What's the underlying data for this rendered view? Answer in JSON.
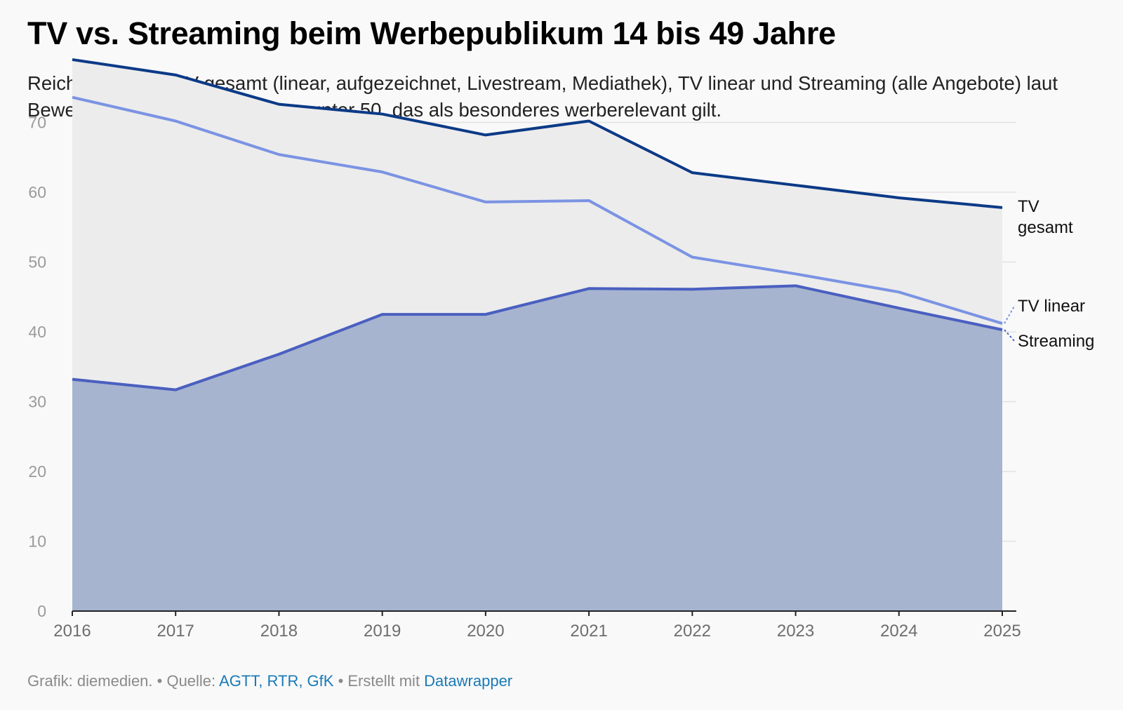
{
  "title": "TV vs. Streaming beim Werbepublikum 14 bis 49 Jahre",
  "subtitle": "Reichweiten von TV gesamt (linear, aufgezeichnet, Livestream, Mediathek), TV linear und Streaming (alle Angebote) laut Bewegtbildstudie beim Publikum unter 50, das als besonderes werberelevant gilt.",
  "footer": {
    "prefix": "Grafik: diemedien. • Quelle: ",
    "source": "AGTT, RTR, GfK",
    "mid": " • Erstellt mit ",
    "tool": "Datawrapper"
  },
  "chart_data": {
    "type": "area",
    "title": "TV vs. Streaming beim Werbepublikum 14 bis 49 Jahre",
    "xlabel": "",
    "ylabel": "",
    "x": [
      "2016",
      "2017",
      "2018",
      "2019",
      "2020",
      "2021",
      "2022",
      "2023",
      "2024",
      "2025"
    ],
    "ylim": [
      0,
      80
    ],
    "yticks": [
      0,
      10,
      20,
      30,
      40,
      50,
      60,
      70
    ],
    "grid": true,
    "series": [
      {
        "name": "TV gesamt",
        "color": "#0b3a87",
        "values": [
          79,
          76.8,
          72.6,
          71.2,
          68.2,
          70.2,
          62.8,
          61.0,
          59.2,
          57.8
        ]
      },
      {
        "name": "TV linear",
        "color": "#7b93e3",
        "values": [
          73.6,
          70.2,
          65.4,
          62.9,
          58.6,
          58.8,
          50.7,
          48.3,
          45.7,
          41.2
        ]
      },
      {
        "name": "Streaming",
        "color": "#4a5fc0",
        "values": [
          33.2,
          31.7,
          36.8,
          42.5,
          42.5,
          46.2,
          46.1,
          46.6,
          43.4,
          40.3
        ]
      }
    ],
    "end_labels": {
      "tv_gesamt": [
        "TV",
        "gesamt"
      ],
      "tv_linear": "TV linear",
      "streaming": "Streaming"
    },
    "colors": {
      "area_upper": "#ececec",
      "area_lower": "#a6b4d0",
      "gridline": "#e2e2e2",
      "axis": "#222222"
    }
  }
}
